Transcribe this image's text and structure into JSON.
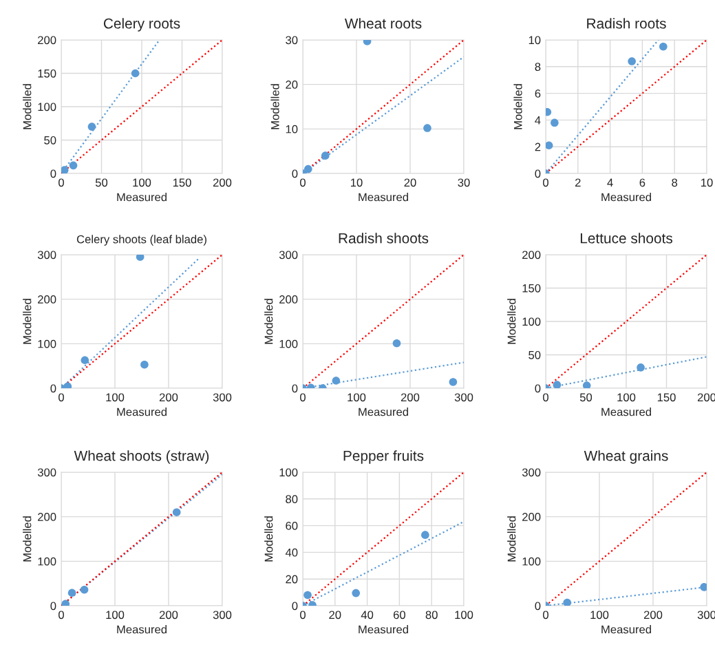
{
  "chart_data": [
    {
      "type": "scatter",
      "title": "Celery roots",
      "xlabel": "Measured",
      "ylabel": "Modelled",
      "xlim": [
        0,
        200
      ],
      "ylim": [
        0,
        200
      ],
      "xticks": [
        0,
        50,
        100,
        150,
        200
      ],
      "yticks": [
        0,
        50,
        100,
        150,
        200
      ],
      "grid": true,
      "marker": "circle",
      "series": [
        {
          "color": "#5b9bd5",
          "x": [
            4,
            15,
            38,
            92
          ],
          "values": [
            5,
            12,
            70,
            150
          ]
        },
        {
          "type": "line",
          "color": "#5b9bd5",
          "line_style": "dotted",
          "marker": "none",
          "x": [
            0,
            122
          ],
          "values": [
            0,
            200
          ]
        },
        {
          "type": "line",
          "color": "#ff0000",
          "line_style": "dotted",
          "marker": "none",
          "x": [
            0,
            200
          ],
          "values": [
            0,
            200
          ]
        }
      ]
    },
    {
      "type": "scatter",
      "title": "Wheat roots",
      "xlabel": "Measured",
      "ylabel": "Modelled",
      "xlim": [
        0,
        30
      ],
      "ylim": [
        0,
        30
      ],
      "xticks": [
        0,
        10,
        20,
        30
      ],
      "yticks": [
        0,
        10,
        20,
        30
      ],
      "grid": true,
      "marker": "circle",
      "series": [
        {
          "color": "#5b9bd5",
          "x": [
            0,
            1,
            4.2,
            12,
            23.2
          ],
          "values": [
            0,
            1,
            4,
            29.7,
            10.2
          ]
        },
        {
          "type": "line",
          "color": "#5b9bd5",
          "line_style": "dotted",
          "marker": "none",
          "x": [
            0,
            30
          ],
          "values": [
            0,
            26.2
          ]
        },
        {
          "type": "line",
          "color": "#ff0000",
          "line_style": "dotted",
          "marker": "none",
          "x": [
            0,
            30
          ],
          "values": [
            0,
            30
          ]
        }
      ]
    },
    {
      "type": "scatter",
      "title": "Radish roots",
      "xlabel": "Measured",
      "ylabel": "Modelled",
      "xlim": [
        0,
        10
      ],
      "ylim": [
        0,
        10
      ],
      "xticks": [
        0,
        2,
        4,
        6,
        8,
        10
      ],
      "yticks": [
        0,
        2,
        4,
        6,
        8,
        10
      ],
      "grid": true,
      "marker": "circle",
      "series": [
        {
          "color": "#5b9bd5",
          "x": [
            0,
            0.1,
            0.2,
            0.55,
            5.35,
            7.3
          ],
          "values": [
            0,
            4.6,
            2.1,
            3.8,
            8.4,
            9.5
          ]
        },
        {
          "type": "line",
          "color": "#5b9bd5",
          "line_style": "dotted",
          "marker": "none",
          "x": [
            0,
            7
          ],
          "values": [
            0,
            10
          ]
        },
        {
          "type": "line",
          "color": "#ff0000",
          "line_style": "dotted",
          "marker": "none",
          "x": [
            0,
            10
          ],
          "values": [
            0,
            10
          ]
        }
      ]
    },
    {
      "type": "scatter",
      "title": "Celery shoots (leaf blade)",
      "xlabel": "Measured",
      "ylabel": "Modelled",
      "xlim": [
        0,
        300
      ],
      "ylim": [
        0,
        300
      ],
      "xticks": [
        0,
        100,
        200,
        300
      ],
      "yticks": [
        0,
        100,
        200,
        300
      ],
      "grid": true,
      "marker": "circle",
      "series": [
        {
          "color": "#5b9bd5",
          "x": [
            0,
            12,
            44,
            147,
            155
          ],
          "values": [
            0,
            4,
            63,
            295,
            53
          ]
        },
        {
          "type": "line",
          "color": "#5b9bd5",
          "line_style": "dotted",
          "marker": "none",
          "x": [
            0,
            255
          ],
          "values": [
            0,
            290
          ]
        },
        {
          "type": "line",
          "color": "#ff0000",
          "line_style": "dotted",
          "marker": "none",
          "x": [
            0,
            300
          ],
          "values": [
            0,
            300
          ]
        }
      ]
    },
    {
      "type": "scatter",
      "title": "Radish shoots",
      "xlabel": "Measured",
      "ylabel": "Modelled",
      "xlim": [
        0,
        300
      ],
      "ylim": [
        0,
        300
      ],
      "xticks": [
        0,
        100,
        200,
        300
      ],
      "yticks": [
        0,
        100,
        200,
        300
      ],
      "grid": true,
      "marker": "circle",
      "series": [
        {
          "color": "#5b9bd5",
          "x": [
            0,
            15,
            37,
            62,
            175,
            280
          ],
          "values": [
            0,
            1,
            0,
            17,
            101,
            14
          ]
        },
        {
          "type": "line",
          "color": "#5b9bd5",
          "line_style": "dotted",
          "marker": "none",
          "x": [
            0,
            300
          ],
          "values": [
            0,
            58
          ]
        },
        {
          "type": "line",
          "color": "#ff0000",
          "line_style": "dotted",
          "marker": "none",
          "x": [
            0,
            300
          ],
          "values": [
            0,
            300
          ]
        }
      ]
    },
    {
      "type": "scatter",
      "title": "Lettuce shoots",
      "xlabel": "Measured",
      "ylabel": "Modelled",
      "xlim": [
        0,
        200
      ],
      "ylim": [
        0,
        200
      ],
      "xticks": [
        0,
        50,
        100,
        150,
        200
      ],
      "yticks": [
        0,
        50,
        100,
        150,
        200
      ],
      "grid": true,
      "marker": "circle",
      "series": [
        {
          "color": "#5b9bd5",
          "x": [
            0,
            14,
            51,
            118
          ],
          "values": [
            0,
            5,
            4,
            31
          ]
        },
        {
          "type": "line",
          "color": "#5b9bd5",
          "line_style": "dotted",
          "marker": "none",
          "x": [
            0,
            200
          ],
          "values": [
            0,
            47
          ]
        },
        {
          "type": "line",
          "color": "#ff0000",
          "line_style": "dotted",
          "marker": "none",
          "x": [
            0,
            200
          ],
          "values": [
            0,
            200
          ]
        }
      ]
    },
    {
      "type": "scatter",
      "title": "Wheat shoots (straw)",
      "xlabel": "Measured",
      "ylabel": "Modelled",
      "xlim": [
        0,
        300
      ],
      "ylim": [
        0,
        300
      ],
      "xticks": [
        0,
        100,
        200,
        300
      ],
      "yticks": [
        0,
        100,
        200,
        300
      ],
      "grid": true,
      "marker": "circle",
      "series": [
        {
          "color": "#5b9bd5",
          "x": [
            8,
            20,
            43,
            215
          ],
          "values": [
            4,
            29,
            36,
            210
          ]
        },
        {
          "type": "line",
          "color": "#5b9bd5",
          "line_style": "dotted",
          "marker": "none",
          "x": [
            0,
            300
          ],
          "values": [
            0,
            295
          ]
        },
        {
          "type": "line",
          "color": "#ff0000",
          "line_style": "dotted",
          "marker": "none",
          "x": [
            0,
            300
          ],
          "values": [
            0,
            300
          ]
        }
      ]
    },
    {
      "type": "scatter",
      "title": "Pepper fruits",
      "xlabel": "Measured",
      "ylabel": "Modelled",
      "xlim": [
        0,
        100
      ],
      "ylim": [
        0,
        100
      ],
      "xticks": [
        0,
        20,
        40,
        60,
        80,
        100
      ],
      "yticks": [
        0,
        20,
        40,
        60,
        80,
        100
      ],
      "grid": true,
      "marker": "circle",
      "series": [
        {
          "color": "#5b9bd5",
          "x": [
            0,
            3,
            6,
            33,
            76
          ],
          "values": [
            0,
            8,
            0.5,
            9.5,
            53
          ]
        },
        {
          "type": "line",
          "color": "#5b9bd5",
          "line_style": "dotted",
          "marker": "none",
          "x": [
            0,
            100
          ],
          "values": [
            0,
            63
          ]
        },
        {
          "type": "line",
          "color": "#ff0000",
          "line_style": "dotted",
          "marker": "none",
          "x": [
            0,
            100
          ],
          "values": [
            0,
            100
          ]
        }
      ]
    },
    {
      "type": "scatter",
      "title": "Wheat grains",
      "xlabel": "Measured",
      "ylabel": "Modelled",
      "xlim": [
        0,
        300
      ],
      "ylim": [
        0,
        300
      ],
      "xticks": [
        0,
        100,
        200,
        300
      ],
      "yticks": [
        0,
        100,
        200,
        300
      ],
      "grid": true,
      "marker": "circle",
      "series": [
        {
          "color": "#5b9bd5",
          "x": [
            0,
            40,
            295
          ],
          "values": [
            0,
            7,
            42
          ]
        },
        {
          "type": "line",
          "color": "#5b9bd5",
          "line_style": "dotted",
          "marker": "none",
          "x": [
            0,
            300
          ],
          "values": [
            0,
            42
          ]
        },
        {
          "type": "line",
          "color": "#ff0000",
          "line_style": "dotted",
          "marker": "none",
          "x": [
            0,
            300
          ],
          "values": [
            0,
            300
          ]
        }
      ]
    }
  ]
}
